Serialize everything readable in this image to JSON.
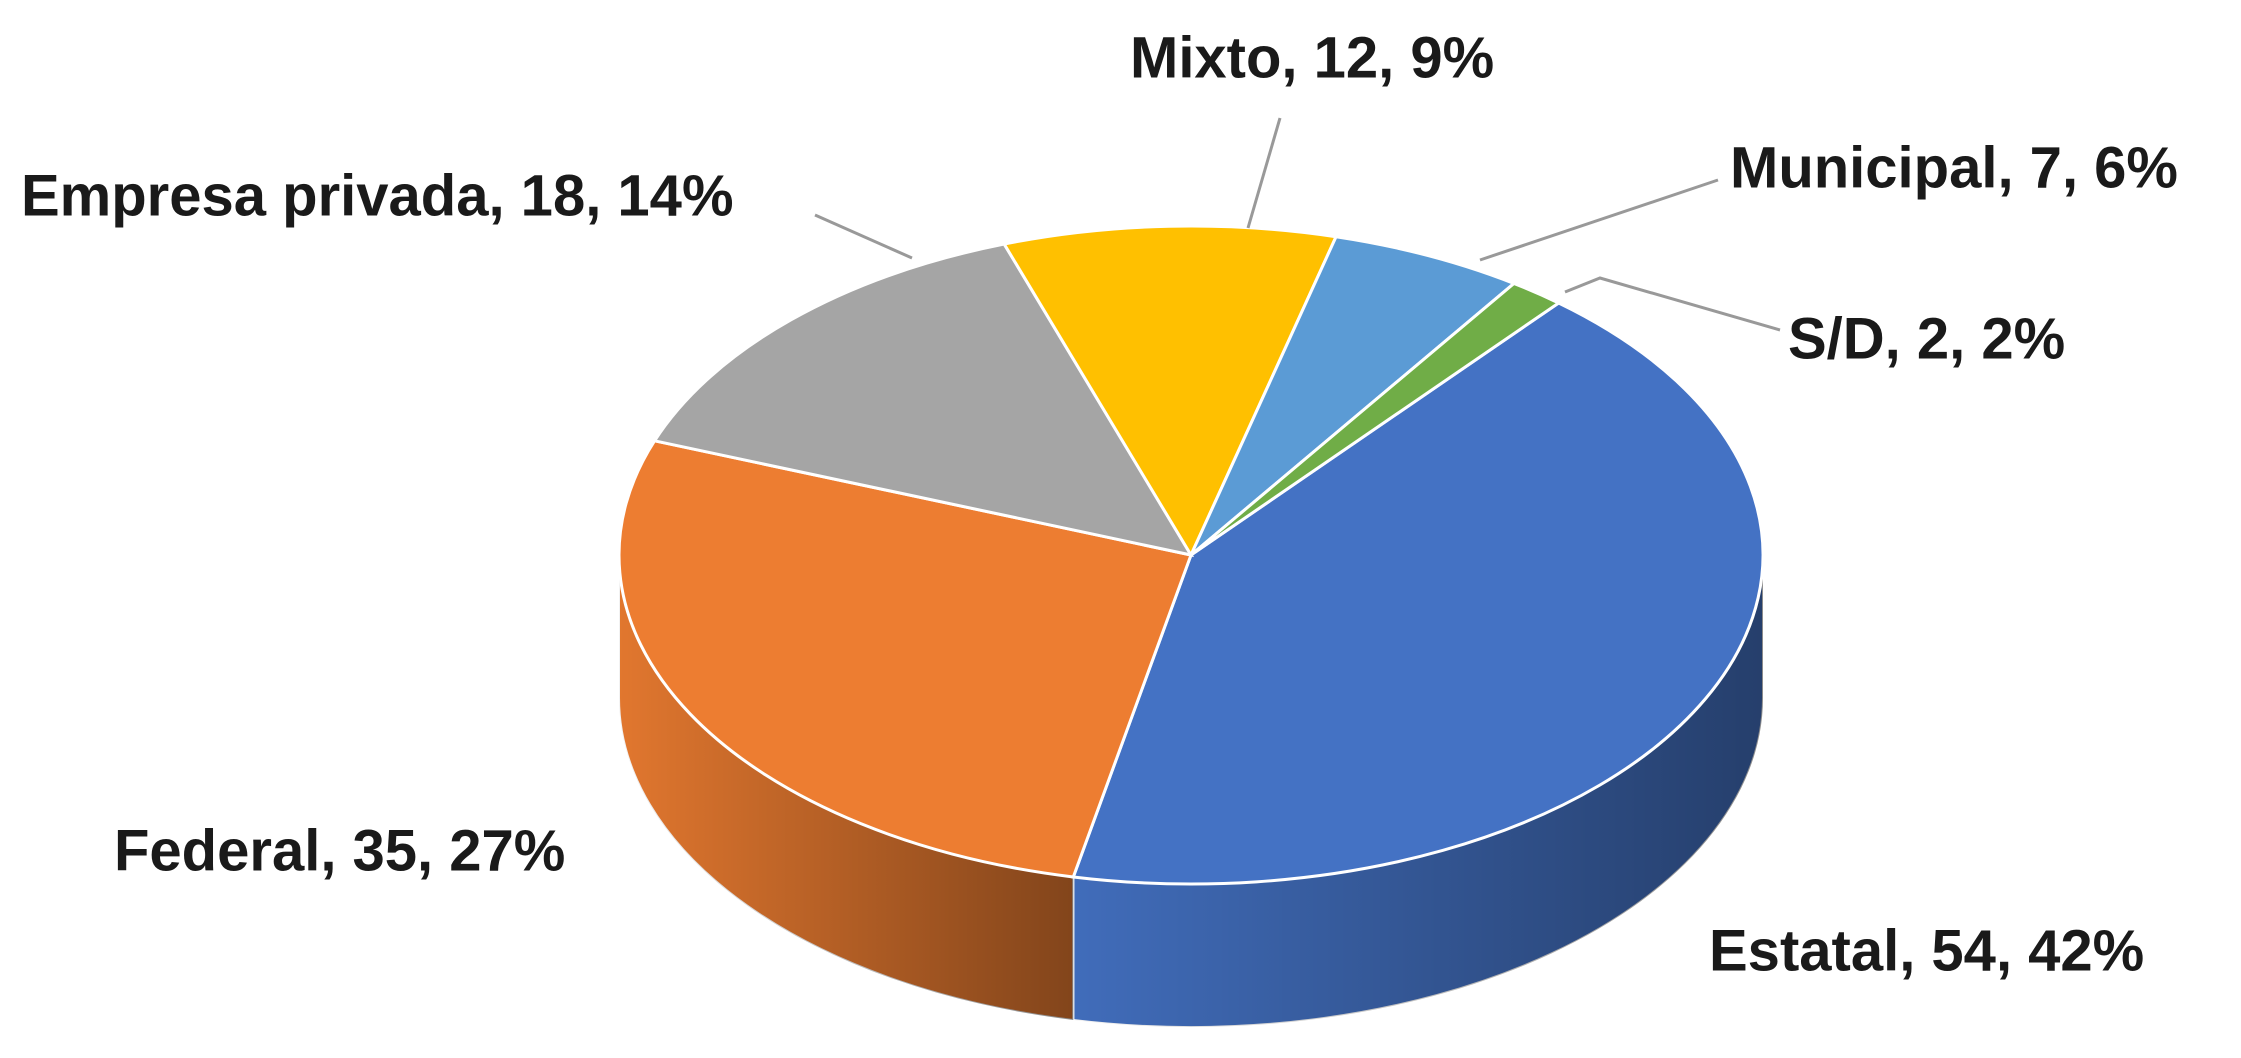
{
  "chart_data": {
    "type": "pie",
    "values": [
      54,
      35,
      18,
      12,
      7,
      2
    ],
    "value_labels": [
      "Estatal, 54, 42%",
      "Federal, 35, 27%",
      "Empresa privada, 18, 14%",
      "Mixto, 12, 9%",
      "Municipal, 7, 6%",
      "S/D, 2, 2%"
    ],
    "colors": [
      "#4472c4",
      "#ed7d31",
      "#a5a5a5",
      "#ffc000",
      "#5b9bd5",
      "#70ad47"
    ]
  }
}
